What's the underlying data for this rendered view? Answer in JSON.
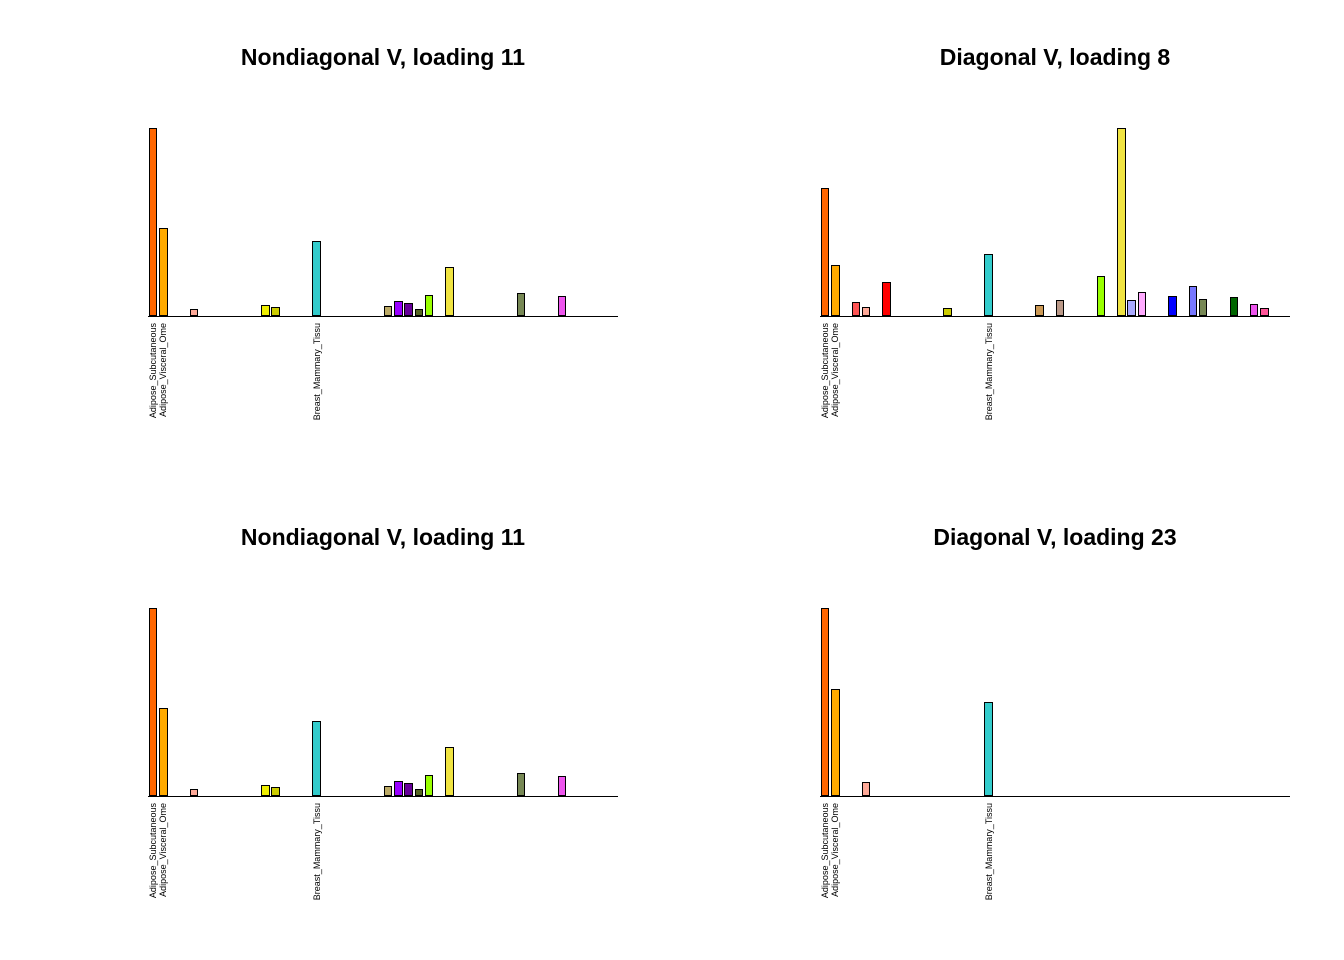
{
  "page": {
    "background": "#FFFFFF"
  },
  "chart_data": [
    {
      "type": "bar",
      "title": "Nondiagonal V, loading 11",
      "xlabel": "",
      "ylabel": "",
      "grid": false,
      "legend": "none",
      "n_bars": 46,
      "ylim": [
        0,
        1
      ],
      "bar_outline": "#000000",
      "bars": [
        {
          "i": 0,
          "v": 1.0,
          "color": "#FF6600"
        },
        {
          "i": 1,
          "v": 0.47,
          "color": "#FFAA00"
        },
        {
          "i": 4,
          "v": 0.035,
          "color": "#FFAA99"
        },
        {
          "i": 11,
          "v": 0.06,
          "color": "#EEEE00"
        },
        {
          "i": 12,
          "v": 0.05,
          "color": "#CCCC00"
        },
        {
          "i": 16,
          "v": 0.4,
          "color": "#33CCCC"
        },
        {
          "i": 23,
          "v": 0.053,
          "color": "#BBAA66"
        },
        {
          "i": 24,
          "v": 0.08,
          "color": "#9900FF"
        },
        {
          "i": 25,
          "v": 0.07,
          "color": "#660099"
        },
        {
          "i": 26,
          "v": 0.037,
          "color": "#556622"
        },
        {
          "i": 27,
          "v": 0.11,
          "color": "#99FF00"
        },
        {
          "i": 29,
          "v": 0.26,
          "color": "#F0E442"
        },
        {
          "i": 36,
          "v": 0.12,
          "color": "#778855"
        },
        {
          "i": 40,
          "v": 0.105,
          "color": "#EE55EE"
        }
      ],
      "x_tick_labels": [
        {
          "i": 0,
          "text": "Adipose_Subcutaneous"
        },
        {
          "i": 1,
          "text": "Adipose_Visceral_Ome"
        },
        {
          "i": 16,
          "text": "Breast_Mammary_Tissu"
        }
      ]
    },
    {
      "type": "bar",
      "title": "Diagonal V, loading 8",
      "xlabel": "",
      "ylabel": "",
      "grid": false,
      "legend": "none",
      "n_bars": 46,
      "ylim": [
        0,
        1
      ],
      "bar_outline": "#000000",
      "bars": [
        {
          "i": 0,
          "v": 0.68,
          "color": "#FF6600"
        },
        {
          "i": 1,
          "v": 0.27,
          "color": "#FFAA00"
        },
        {
          "i": 3,
          "v": 0.075,
          "color": "#FF5555"
        },
        {
          "i": 4,
          "v": 0.05,
          "color": "#FFAA99"
        },
        {
          "i": 6,
          "v": 0.18,
          "color": "#FF0000"
        },
        {
          "i": 12,
          "v": 0.04,
          "color": "#CCCC00"
        },
        {
          "i": 16,
          "v": 0.33,
          "color": "#33CCCC"
        },
        {
          "i": 21,
          "v": 0.06,
          "color": "#CC9955"
        },
        {
          "i": 23,
          "v": 0.086,
          "color": "#BB9988"
        },
        {
          "i": 27,
          "v": 0.215,
          "color": "#99FF00"
        },
        {
          "i": 29,
          "v": 1.0,
          "color": "#F0E442"
        },
        {
          "i": 30,
          "v": 0.086,
          "color": "#AAAAFF"
        },
        {
          "i": 31,
          "v": 0.13,
          "color": "#FFAAFF"
        },
        {
          "i": 34,
          "v": 0.108,
          "color": "#0000FF"
        },
        {
          "i": 36,
          "v": 0.16,
          "color": "#7777FF"
        },
        {
          "i": 37,
          "v": 0.09,
          "color": "#778855"
        },
        {
          "i": 40,
          "v": 0.1,
          "color": "#006600"
        },
        {
          "i": 42,
          "v": 0.065,
          "color": "#EE55EE"
        },
        {
          "i": 43,
          "v": 0.043,
          "color": "#FF5599"
        }
      ],
      "x_tick_labels": [
        {
          "i": 0,
          "text": "Adipose_Subcutaneous"
        },
        {
          "i": 1,
          "text": "Adipose_Visceral_Ome"
        },
        {
          "i": 16,
          "text": "Breast_Mammary_Tissu"
        }
      ]
    },
    {
      "type": "bar",
      "title": "Nondiagonal V, loading 11",
      "xlabel": "",
      "ylabel": "",
      "grid": false,
      "legend": "none",
      "n_bars": 46,
      "ylim": [
        0,
        1
      ],
      "bar_outline": "#000000",
      "bars": [
        {
          "i": 0,
          "v": 1.0,
          "color": "#FF6600"
        },
        {
          "i": 1,
          "v": 0.47,
          "color": "#FFAA00"
        },
        {
          "i": 4,
          "v": 0.035,
          "color": "#FFAA99"
        },
        {
          "i": 11,
          "v": 0.06,
          "color": "#EEEE00"
        },
        {
          "i": 12,
          "v": 0.05,
          "color": "#CCCC00"
        },
        {
          "i": 16,
          "v": 0.4,
          "color": "#33CCCC"
        },
        {
          "i": 23,
          "v": 0.053,
          "color": "#BBAA66"
        },
        {
          "i": 24,
          "v": 0.08,
          "color": "#9900FF"
        },
        {
          "i": 25,
          "v": 0.07,
          "color": "#660099"
        },
        {
          "i": 26,
          "v": 0.037,
          "color": "#556622"
        },
        {
          "i": 27,
          "v": 0.11,
          "color": "#99FF00"
        },
        {
          "i": 29,
          "v": 0.26,
          "color": "#F0E442"
        },
        {
          "i": 36,
          "v": 0.12,
          "color": "#778855"
        },
        {
          "i": 40,
          "v": 0.105,
          "color": "#EE55EE"
        }
      ],
      "x_tick_labels": [
        {
          "i": 0,
          "text": "Adipose_Subcutaneous"
        },
        {
          "i": 1,
          "text": "Adipose_Visceral_Ome"
        },
        {
          "i": 16,
          "text": "Breast_Mammary_Tissu"
        }
      ]
    },
    {
      "type": "bar",
      "title": "Diagonal V, loading 23",
      "xlabel": "",
      "ylabel": "",
      "grid": false,
      "legend": "none",
      "n_bars": 46,
      "ylim": [
        0,
        1
      ],
      "bar_outline": "#000000",
      "bars": [
        {
          "i": 0,
          "v": 1.0,
          "color": "#FF6600"
        },
        {
          "i": 1,
          "v": 0.57,
          "color": "#FFAA00"
        },
        {
          "i": 4,
          "v": 0.075,
          "color": "#FFAA99"
        },
        {
          "i": 16,
          "v": 0.5,
          "color": "#33CCCC"
        }
      ],
      "x_tick_labels": [
        {
          "i": 0,
          "text": "Adipose_Subcutaneous"
        },
        {
          "i": 1,
          "text": "Adipose_Visceral_Ome"
        },
        {
          "i": 16,
          "text": "Breast_Mammary_Tissu"
        }
      ]
    }
  ]
}
